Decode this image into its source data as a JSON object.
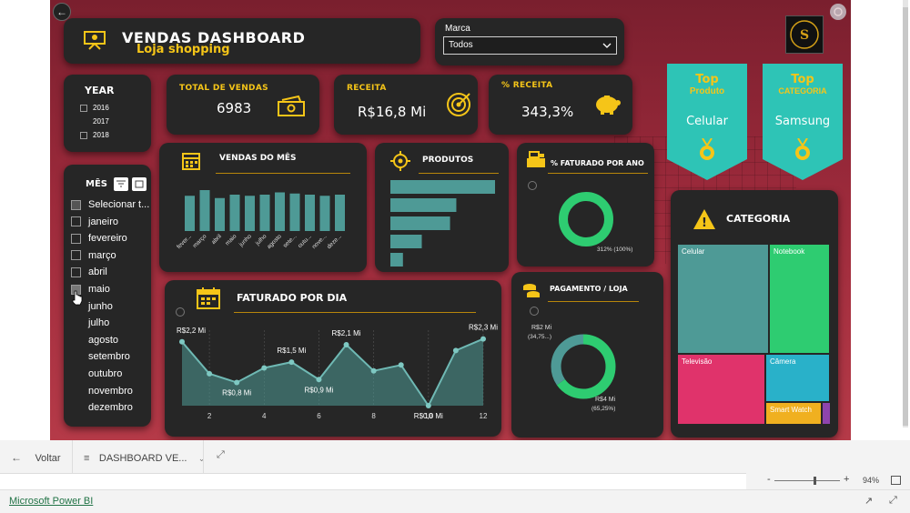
{
  "header": {
    "title": "VENDAS DASHBOARD",
    "subtitle": "Loja shopping"
  },
  "marca": {
    "label": "Marca",
    "selected": "Todos"
  },
  "year_filter": {
    "label": "YEAR",
    "options": [
      "2016",
      "2017",
      "2018"
    ]
  },
  "month_filter": {
    "label": "MÊS",
    "select_all": "Selecionar t...",
    "months": [
      "janeiro",
      "fevereiro",
      "março",
      "abril",
      "maio",
      "junho",
      "julho",
      "agosto",
      "setembro",
      "outubro",
      "novembro",
      "dezembro"
    ]
  },
  "kpis": {
    "total_vendas": {
      "label": "TOTAL DE VENDAS",
      "value": "6983"
    },
    "receita": {
      "label": "RECEITA",
      "value": "R$16,8 Mi"
    },
    "pct_receita": {
      "label": "% RECEITA",
      "value": "343,3%"
    }
  },
  "top_produto": {
    "top": "Top",
    "label": "Produto",
    "value": "Celular"
  },
  "top_categoria": {
    "top": "Top",
    "label": "CATEGORIA",
    "value": "Samsung"
  },
  "vendas_mes": {
    "title": "VENDAS DO MÊS",
    "months": [
      "fever...",
      "março",
      "abril",
      "maio",
      "junho",
      "julho",
      "agosto",
      "sete...",
      "outu...",
      "nove...",
      "deze..."
    ],
    "values": [
      62,
      72,
      58,
      64,
      62,
      64,
      68,
      66,
      64,
      62,
      64
    ]
  },
  "produtos": {
    "title": "PRODUTOS",
    "values": [
      100,
      63,
      57,
      30,
      12
    ]
  },
  "faturado_ano": {
    "title": "% FATURADO POR ANO",
    "label": "312% (100%)"
  },
  "faturado_dia": {
    "title": "FATURADO POR DIA",
    "chart_data": {
      "type": "area",
      "x": [
        1,
        2,
        3,
        4,
        5,
        6,
        7,
        8,
        9,
        10,
        11,
        12
      ],
      "values": [
        2.2,
        1.1,
        0.8,
        1.3,
        1.5,
        0.9,
        2.1,
        1.2,
        1.4,
        0.0,
        1.9,
        2.3
      ],
      "xticks": [
        "2",
        "4",
        "6",
        "8",
        "10",
        "12"
      ],
      "labels": [
        "R$2,2 Mi",
        "R$0,8 Mi",
        "R$1,5 Mi",
        "R$0,9 Mi",
        "R$2,1 Mi",
        "R$0,0 Mi",
        "R$2,3 Mi"
      ],
      "ylim": [
        0,
        2.6
      ]
    }
  },
  "pagamento": {
    "title": "PAGAMENTO / LOJA",
    "label_a_value": "R$2 Mi",
    "label_a_pct": "(34,75...)",
    "label_b_value": "R$4 Mi",
    "label_b_pct": "(65,25%)",
    "fractions": [
      0.3475,
      0.6525
    ]
  },
  "categoria": {
    "title": "CATEGORIA",
    "items": [
      {
        "name": "Celular",
        "color": "#4e9a96"
      },
      {
        "name": "Notebook",
        "color": "#2ecc71"
      },
      {
        "name": "Televisão",
        "color": "#e0336b"
      },
      {
        "name": "Câmera",
        "color": "#29b1c9"
      },
      {
        "name": "Smart Watch",
        "color": "#f0b020"
      }
    ]
  },
  "bottom_bar": {
    "back_label": "Voltar",
    "page_tab": "DASHBOARD VE...",
    "zoom_minus": "-",
    "zoom_plus": "+",
    "zoom_level": "94%",
    "zoom_fraction": 0.6,
    "product_link": "Microsoft Power BI"
  },
  "colors": {
    "accent": "#f5c518",
    "teal": "#4e9a96",
    "green": "#2ecc71",
    "card": "#262626"
  }
}
